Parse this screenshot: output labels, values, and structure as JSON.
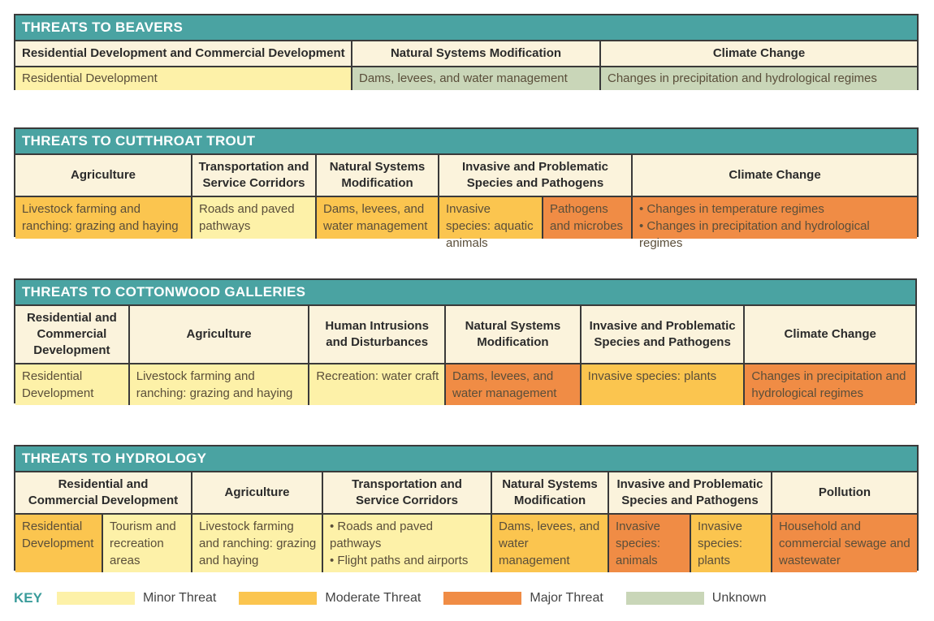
{
  "tables": {
    "beavers": {
      "title": "THREATS TO BEAVERS",
      "headers": [
        "Residential Development and Commercial Development",
        "Natural Systems Modification",
        "Climate Change"
      ],
      "cells": [
        "Residential Development",
        "Dams, levees, and water management",
        "Changes in precipitation and hydrological regimes"
      ],
      "levels": [
        "minor",
        "unknown",
        "unknown"
      ]
    },
    "trout": {
      "title": "THREATS TO CUTTHROAT TROUT",
      "headers": [
        "Agriculture",
        "Transportation and Service Corridors",
        "Natural Systems Modification",
        "Invasive and Problematic Species and Pathogens",
        "Climate Change"
      ],
      "cells": [
        "Livestock farming and ranching: grazing and haying",
        "Roads and paved pathways",
        "Dams, levees, and water management",
        "Invasive species: aquatic animals",
        "Pathogens and microbes",
        "• Changes in temperature regimes",
        "• Changes in precipitation and hydrological regimes"
      ],
      "levels": [
        "moderate",
        "minor",
        "moderate",
        "moderate",
        "major",
        "major"
      ]
    },
    "cottonwood": {
      "title": "THREATS TO COTTONWOOD GALLERIES",
      "headers": [
        "Residential and Commercial Development",
        "Agriculture",
        "Human Intrusions and Disturbances",
        "Natural Systems Modification",
        "Invasive and Problematic Species and Pathogens",
        "Climate Change"
      ],
      "cells": [
        "Residential Development",
        "Livestock farming and ranching: grazing and haying",
        "Recreation: water craft",
        "Dams, levees, and water management",
        "Invasive species: plants",
        "Changes in precipitation and hydrological regimes"
      ],
      "levels": [
        "minor",
        "minor",
        "minor",
        "major",
        "moderate",
        "major"
      ]
    },
    "hydrology": {
      "title": "THREATS TO HYDROLOGY",
      "headers": [
        "Residential and Commercial Development",
        "Agriculture",
        "Transportation and Service Corridors",
        "Natural Systems Modification",
        "Invasive and Problematic Species and Pathogens",
        "Pollution"
      ],
      "cells": [
        "Residential Development",
        "Tourism and recreation areas",
        "Livestock farming and ranching: grazing and haying",
        "• Roads and paved pathways",
        "• Flight paths and airports",
        "Dams, levees, and water management",
        "Invasive species: animals",
        "Invasive species: plants",
        "Household and commercial sewage and wastewater"
      ],
      "levels": [
        "moderate",
        "minor",
        "minor",
        "minor",
        "moderate",
        "major",
        "moderate",
        "major"
      ]
    }
  },
  "key": {
    "title": "KEY",
    "items": [
      {
        "label": "Minor Threat",
        "color": "#fdf1a8"
      },
      {
        "label": "Moderate Threat",
        "color": "#fbc54f"
      },
      {
        "label": "Major Threat",
        "color": "#f08c45"
      },
      {
        "label": "Unknown",
        "color": "#c9d6b8"
      }
    ]
  }
}
